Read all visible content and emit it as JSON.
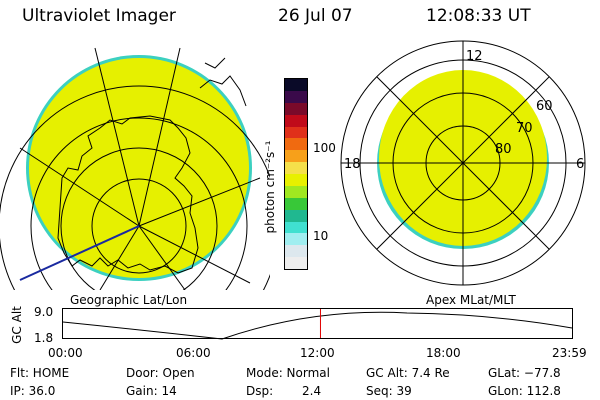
{
  "header": {
    "instrument": "Ultraviolet Imager",
    "date": "26 Jul 07",
    "time": "12:08:33 UT"
  },
  "colorbar": {
    "unit_label": "photon cm⁻²s⁻¹",
    "tick_100": "100",
    "tick_10": "10",
    "colors_top_to_bottom": [
      "#0a0a28",
      "#3a0a4a",
      "#7a0a2a",
      "#c00a1a",
      "#e0301a",
      "#f06a10",
      "#f7a01a",
      "#f5e04a",
      "#e8f000",
      "#a0e820",
      "#38c838",
      "#20b890",
      "#40e0d0",
      "#a0eef0",
      "#dde8ee",
      "#eeeeee"
    ]
  },
  "left_map": {
    "caption": "Geographic Lat/Lon",
    "fill_color": "#e6f000",
    "edge_color": "#3cd0c0"
  },
  "right_map": {
    "caption": "Apex MLat/MLT",
    "label_12": "12",
    "label_18": "18",
    "label_6": "6",
    "lat_60": "60",
    "lat_70": "70",
    "lat_80": "80",
    "fill_color": "#e6f000"
  },
  "altitude_plot": {
    "ylabel": "GC Alt",
    "y_top": "9.0",
    "y_bottom": "1.8",
    "x_ticks": [
      "00:00",
      "06:00",
      "12:00",
      "18:00",
      "23:59"
    ],
    "current_time_marker_hours": 12.14,
    "marker_color": "#e00000"
  },
  "status": {
    "flt": "Flt: HOME",
    "ip": "IP: 36.0",
    "door": "Door: Open",
    "gain": "Gain: 14",
    "mode": "Mode: Normal",
    "dsp": "Dsp:",
    "dsp_value": "2.4",
    "gc_alt": "GC Alt: 7.4 Re",
    "seq": "Seq: 39",
    "glat": "GLat: −77.8",
    "glon": "GLon: 112.8"
  }
}
